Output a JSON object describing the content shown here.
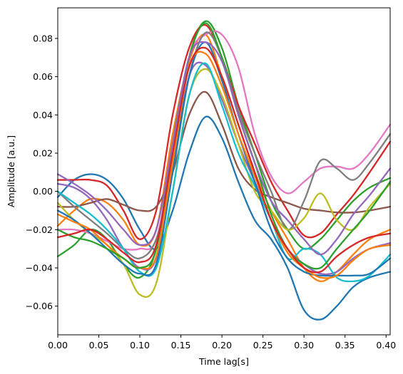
{
  "chart_data": {
    "type": "line",
    "title": "",
    "xlabel": "Time lag[s]",
    "ylabel": "Amplitude [a.u.]",
    "xlim": [
      0.0,
      0.405
    ],
    "ylim": [
      -0.075,
      0.096
    ],
    "x_ticks": [
      0.0,
      0.05,
      0.1,
      0.15,
      0.2,
      0.25,
      0.3,
      0.35,
      0.4
    ],
    "x_tick_labels": [
      "0.00",
      "0.05",
      "0.10",
      "0.15",
      "0.20",
      "0.25",
      "0.30",
      "0.35",
      "0.40"
    ],
    "y_ticks": [
      -0.06,
      -0.04,
      -0.02,
      0.0,
      0.02,
      0.04,
      0.06,
      0.08
    ],
    "y_tick_labels": [
      "−0.06",
      "−0.04",
      "−0.02",
      "0.00",
      "0.02",
      "0.04",
      "0.06",
      "0.08"
    ],
    "grid": false,
    "legend": "none",
    "x": [
      0.0,
      0.02,
      0.04,
      0.06,
      0.08,
      0.1,
      0.12,
      0.14,
      0.16,
      0.18,
      0.2,
      0.22,
      0.24,
      0.26,
      0.28,
      0.3,
      0.32,
      0.34,
      0.36,
      0.38,
      0.405
    ],
    "series": [
      {
        "color": "#1f77b4",
        "values": [
          -0.003,
          0.006,
          0.009,
          0.006,
          -0.004,
          -0.02,
          -0.03,
          -0.01,
          0.02,
          0.039,
          0.028,
          0.005,
          -0.015,
          -0.025,
          -0.04,
          -0.062,
          -0.067,
          -0.06,
          -0.05,
          -0.045,
          -0.042
        ]
      },
      {
        "color": "#ff7f0e",
        "values": [
          -0.018,
          -0.01,
          -0.004,
          -0.006,
          -0.015,
          -0.028,
          -0.02,
          0.03,
          0.068,
          0.082,
          0.06,
          0.035,
          0.01,
          -0.01,
          -0.025,
          -0.04,
          -0.047,
          -0.042,
          -0.033,
          -0.025,
          -0.02
        ]
      },
      {
        "color": "#2ca02c",
        "values": [
          -0.034,
          -0.028,
          -0.02,
          -0.025,
          -0.038,
          -0.045,
          -0.03,
          0.02,
          0.07,
          0.089,
          0.075,
          0.045,
          0.02,
          -0.005,
          -0.02,
          -0.03,
          -0.025,
          -0.015,
          -0.005,
          0.002,
          0.007
        ]
      },
      {
        "color": "#d62728",
        "values": [
          0.006,
          0.006,
          0.006,
          0.003,
          -0.01,
          -0.025,
          -0.01,
          0.04,
          0.075,
          0.087,
          0.07,
          0.045,
          0.025,
          0.005,
          -0.01,
          -0.023,
          -0.022,
          -0.012,
          -0.002,
          0.01,
          0.026
        ]
      },
      {
        "color": "#9467bd",
        "values": [
          0.004,
          0.002,
          -0.004,
          -0.015,
          -0.03,
          -0.04,
          -0.035,
          0.01,
          0.06,
          0.066,
          0.048,
          0.025,
          0.005,
          -0.015,
          -0.03,
          -0.038,
          -0.043,
          -0.042,
          -0.035,
          -0.03,
          -0.027
        ]
      },
      {
        "color": "#8c564b",
        "values": [
          -0.008,
          -0.008,
          -0.006,
          -0.004,
          -0.007,
          -0.01,
          -0.008,
          0.01,
          0.04,
          0.052,
          0.035,
          0.012,
          0.001,
          -0.003,
          -0.006,
          -0.009,
          -0.01,
          -0.011,
          -0.011,
          -0.01,
          -0.008
        ]
      },
      {
        "color": "#e377c2",
        "values": [
          -0.02,
          -0.02,
          -0.022,
          -0.026,
          -0.03,
          -0.03,
          -0.025,
          0.02,
          0.07,
          0.082,
          0.082,
          0.065,
          0.03,
          0.008,
          -0.001,
          0.005,
          0.012,
          0.013,
          0.012,
          0.02,
          0.035
        ]
      },
      {
        "color": "#7f7f7f",
        "values": [
          0.0,
          -0.008,
          -0.015,
          -0.022,
          -0.03,
          -0.035,
          -0.025,
          0.01,
          0.06,
          0.083,
          0.07,
          0.042,
          0.02,
          0.0,
          -0.02,
          -0.005,
          0.016,
          0.012,
          0.006,
          0.015,
          0.03
        ]
      },
      {
        "color": "#bcbd22",
        "values": [
          -0.006,
          -0.015,
          -0.022,
          -0.028,
          -0.038,
          -0.054,
          -0.048,
          0.0,
          0.05,
          0.064,
          0.05,
          0.025,
          0.0,
          -0.01,
          -0.02,
          -0.014,
          -0.001,
          -0.015,
          -0.02,
          -0.008,
          0.004
        ]
      },
      {
        "color": "#17becf",
        "values": [
          0.0,
          -0.006,
          -0.012,
          -0.02,
          -0.03,
          -0.042,
          -0.04,
          0.0,
          0.05,
          0.067,
          0.045,
          0.02,
          0.003,
          -0.015,
          -0.035,
          -0.03,
          -0.033,
          -0.045,
          -0.047,
          -0.044,
          -0.033
        ]
      },
      {
        "color": "#1f77b4",
        "values": [
          -0.01,
          -0.015,
          -0.022,
          -0.03,
          -0.038,
          -0.043,
          -0.038,
          0.01,
          0.06,
          0.078,
          0.058,
          0.03,
          0.005,
          -0.02,
          -0.035,
          -0.042,
          -0.044,
          -0.044,
          -0.044,
          -0.043,
          -0.035
        ]
      },
      {
        "color": "#ff7f0e",
        "values": [
          -0.012,
          -0.016,
          -0.02,
          -0.028,
          -0.035,
          -0.04,
          -0.034,
          0.015,
          0.065,
          0.072,
          0.055,
          0.03,
          0.008,
          -0.015,
          -0.032,
          -0.04,
          -0.045,
          -0.044,
          -0.036,
          -0.03,
          -0.028
        ]
      },
      {
        "color": "#2ca02c",
        "values": [
          -0.02,
          -0.024,
          -0.026,
          -0.03,
          -0.035,
          -0.04,
          -0.03,
          0.025,
          0.07,
          0.088,
          0.07,
          0.04,
          0.015,
          -0.012,
          -0.03,
          -0.038,
          -0.04,
          -0.03,
          -0.02,
          -0.01,
          0.005
        ]
      },
      {
        "color": "#d62728",
        "values": [
          -0.024,
          -0.022,
          -0.02,
          -0.025,
          -0.032,
          -0.037,
          -0.028,
          0.02,
          0.065,
          0.075,
          0.06,
          0.035,
          0.01,
          -0.015,
          -0.03,
          -0.04,
          -0.042,
          -0.034,
          -0.028,
          -0.024,
          -0.022
        ]
      },
      {
        "color": "#9467bd",
        "values": [
          0.009,
          0.004,
          -0.002,
          -0.01,
          -0.02,
          -0.028,
          -0.02,
          0.025,
          0.07,
          0.078,
          0.068,
          0.04,
          0.015,
          -0.005,
          -0.015,
          -0.025,
          -0.033,
          -0.025,
          -0.012,
          -0.002,
          0.012
        ]
      }
    ]
  }
}
